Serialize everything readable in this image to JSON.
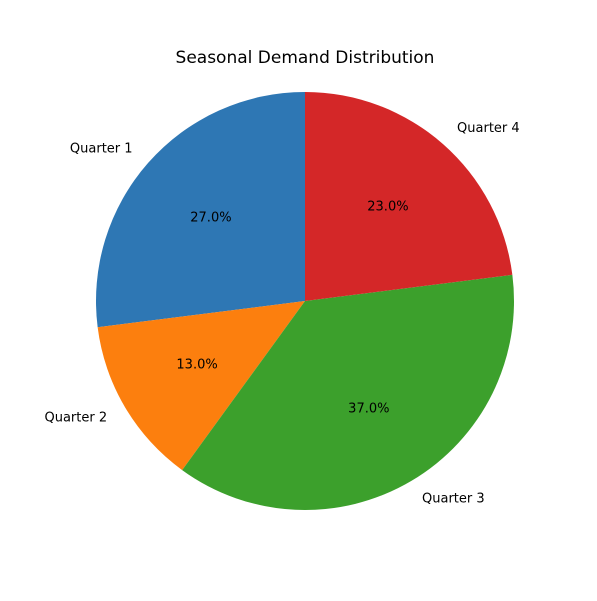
{
  "chart_data": {
    "type": "pie",
    "title": "Seasonal Demand Distribution",
    "categories": [
      "Quarter 1",
      "Quarter 2",
      "Quarter 3",
      "Quarter 4"
    ],
    "values": [
      27.0,
      13.0,
      37.0,
      23.0
    ],
    "percent_labels": [
      "27.0%",
      "13.0%",
      "37.0%",
      "23.0%"
    ],
    "colors": [
      "#2e77b4",
      "#fc7f0e",
      "#3ca02c",
      "#d42728"
    ],
    "start_angle_deg": 90,
    "direction": "counterclockwise",
    "legend": "none"
  }
}
